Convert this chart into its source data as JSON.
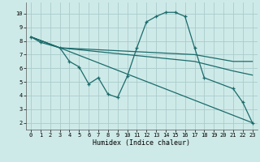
{
  "xlabel": "Humidex (Indice chaleur)",
  "bg_color": "#ceeae8",
  "grid_color": "#aacccc",
  "line_color": "#1a6b6b",
  "xlim": [
    -0.5,
    23.5
  ],
  "ylim": [
    1.5,
    10.8
  ],
  "xticks": [
    0,
    1,
    2,
    3,
    4,
    5,
    6,
    7,
    8,
    9,
    10,
    11,
    12,
    13,
    14,
    15,
    16,
    17,
    18,
    19,
    20,
    21,
    22,
    23
  ],
  "yticks": [
    2,
    3,
    4,
    5,
    6,
    7,
    8,
    9,
    10
  ],
  "line_main": {
    "x": [
      0,
      1,
      3,
      4,
      5,
      6,
      7,
      8,
      9,
      10,
      11,
      12,
      13,
      14,
      15,
      16,
      17,
      18,
      21,
      22,
      23
    ],
    "y": [
      8.3,
      7.9,
      7.5,
      6.5,
      6.1,
      4.85,
      5.3,
      4.1,
      3.85,
      5.4,
      7.5,
      9.4,
      9.8,
      10.1,
      10.1,
      9.8,
      7.5,
      5.3,
      4.5,
      3.5,
      2.0
    ]
  },
  "line_diag": {
    "x": [
      0,
      3,
      23
    ],
    "y": [
      8.3,
      7.5,
      2.0
    ]
  },
  "line_flat1": {
    "x": [
      0,
      3,
      17,
      21,
      23
    ],
    "y": [
      8.3,
      7.5,
      7.0,
      6.5,
      6.5
    ]
  },
  "line_flat2": {
    "x": [
      0,
      3,
      17,
      21,
      23
    ],
    "y": [
      8.3,
      7.5,
      6.5,
      5.8,
      5.5
    ]
  }
}
